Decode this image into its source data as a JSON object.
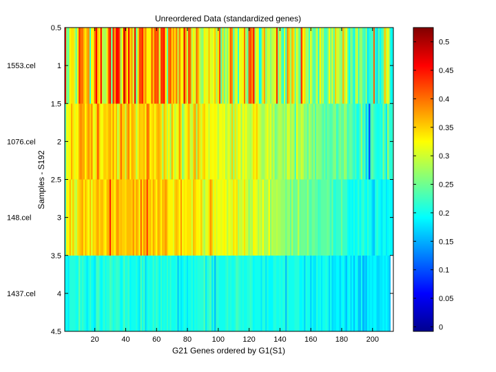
{
  "chart_data": {
    "type": "heatmap",
    "title": "Unreordered Data (standardized genes)",
    "xlabel": "G21 Genes ordered by G1(S1)",
    "ylabel": "Samples - S192",
    "xlim": [
      0.5,
      213.5
    ],
    "ylim": [
      0.5,
      4.5
    ],
    "y_reversed": true,
    "x_ticks": [
      20,
      40,
      60,
      80,
      100,
      120,
      140,
      160,
      180,
      200
    ],
    "y_ticks": [
      0.5,
      1,
      1.5,
      2,
      2.5,
      3,
      3.5,
      4,
      4.5
    ],
    "row_labels": [
      "1553.cel",
      "1076.cel",
      "148.cel",
      "1437.cel"
    ],
    "n_genes": 213,
    "colormap": "jet",
    "color_range": [
      -0.008,
      0.525
    ],
    "colorbar_ticks": [
      0,
      0.05,
      0.1,
      0.15,
      0.2,
      0.25,
      0.3,
      0.35,
      0.4,
      0.45,
      0.5
    ],
    "rows": [
      {
        "sample": "1553.cel",
        "values": [
          0.46,
          0.26,
          0.24,
          0.33,
          0.34,
          0.34,
          0.3,
          0.25,
          0.32,
          0.43,
          0.4,
          0.4,
          0.36,
          0.34,
          0.37,
          0.38,
          0.22,
          0.33,
          0.32,
          0.4,
          0.46,
          0.36,
          0.32,
          0.44,
          0.29,
          0.28,
          0.28,
          0.32,
          0.41,
          0.45,
          0.25,
          0.45,
          0.37,
          0.46,
          0.46,
          0.42,
          0.28,
          0.33,
          0.48,
          0.4,
          0.34,
          0.46,
          0.35,
          0.38,
          0.3,
          0.46,
          0.25,
          0.33,
          0.42,
          0.42,
          0.44,
          0.36,
          0.39,
          0.33,
          0.33,
          0.33,
          0.42,
          0.36,
          0.42,
          0.41,
          0.42,
          0.3,
          0.43,
          0.43,
          0.45,
          0.32,
          0.24,
          0.4,
          0.42,
          0.35,
          0.38,
          0.34,
          0.39,
          0.29,
          0.39,
          0.33,
          0.32,
          0.47,
          0.37,
          0.29,
          0.42,
          0.4,
          0.29,
          0.33,
          0.3,
          0.41,
          0.36,
          0.3,
          0.27,
          0.26,
          0.33,
          0.31,
          0.31,
          0.36,
          0.31,
          0.3,
          0.32,
          0.35,
          0.27,
          0.34,
          0.42,
          0.24,
          0.34,
          0.25,
          0.3,
          0.26,
          0.33,
          0.41,
          0.38,
          0.24,
          0.3,
          0.31,
          0.21,
          0.32,
          0.31,
          0.33,
          0.4,
          0.28,
          0.24,
          0.41,
          0.42,
          0.38,
          0.44,
          0.27,
          0.32,
          0.3,
          0.19,
          0.24,
          0.34,
          0.37,
          0.26,
          0.3,
          0.3,
          0.26,
          0.29,
          0.3,
          0.31,
          0.44,
          0.26,
          0.33,
          0.24,
          0.21,
          0.31,
          0.23,
          0.39,
          0.35,
          0.27,
          0.36,
          0.34,
          0.25,
          0.32,
          0.27,
          0.23,
          0.43,
          0.33,
          0.34,
          0.27,
          0.28,
          0.22,
          0.31,
          0.26,
          0.23,
          0.25,
          0.3,
          0.2,
          0.33,
          0.27,
          0.29,
          0.23,
          0.22,
          0.25,
          0.32,
          0.26,
          0.31,
          0.24,
          0.35,
          0.3,
          0.3,
          0.27,
          0.26,
          0.36,
          0.28,
          0.32,
          0.25,
          0.2,
          0.27,
          0.24,
          0.19,
          0.27,
          0.31,
          0.21,
          0.27,
          0.27,
          0.23,
          0.22,
          0.26,
          0.18,
          0.21,
          0.22,
          0.23,
          0.41,
          0.21,
          0.17,
          0.24,
          0.19,
          0.22,
          0.24,
          0.35,
          0.29,
          0.32,
          0.26,
          0.19,
          0.2
        ]
      },
      {
        "sample": "1076.cel",
        "values": [
          0.23,
          0.32,
          0.31,
          0.33,
          0.37,
          0.34,
          0.31,
          0.33,
          0.32,
          0.37,
          0.39,
          0.37,
          0.37,
          0.33,
          0.36,
          0.38,
          0.35,
          0.38,
          0.32,
          0.31,
          0.35,
          0.41,
          0.35,
          0.32,
          0.32,
          0.35,
          0.35,
          0.34,
          0.36,
          0.37,
          0.34,
          0.38,
          0.33,
          0.36,
          0.29,
          0.34,
          0.4,
          0.35,
          0.35,
          0.29,
          0.37,
          0.39,
          0.33,
          0.37,
          0.36,
          0.35,
          0.29,
          0.33,
          0.36,
          0.35,
          0.35,
          0.36,
          0.32,
          0.4,
          0.39,
          0.33,
          0.34,
          0.35,
          0.32,
          0.35,
          0.37,
          0.36,
          0.34,
          0.28,
          0.36,
          0.34,
          0.29,
          0.33,
          0.27,
          0.36,
          0.33,
          0.29,
          0.31,
          0.32,
          0.38,
          0.34,
          0.26,
          0.29,
          0.32,
          0.34,
          0.36,
          0.3,
          0.29,
          0.35,
          0.37,
          0.27,
          0.36,
          0.34,
          0.3,
          0.34,
          0.35,
          0.32,
          0.32,
          0.29,
          0.33,
          0.32,
          0.32,
          0.33,
          0.32,
          0.29,
          0.32,
          0.32,
          0.31,
          0.32,
          0.28,
          0.3,
          0.32,
          0.28,
          0.35,
          0.27,
          0.34,
          0.29,
          0.33,
          0.32,
          0.27,
          0.32,
          0.3,
          0.32,
          0.29,
          0.29,
          0.28,
          0.3,
          0.34,
          0.32,
          0.35,
          0.31,
          0.3,
          0.28,
          0.27,
          0.28,
          0.3,
          0.32,
          0.29,
          0.31,
          0.27,
          0.3,
          0.25,
          0.26,
          0.28,
          0.29,
          0.28,
          0.26,
          0.28,
          0.26,
          0.31,
          0.3,
          0.27,
          0.29,
          0.28,
          0.23,
          0.32,
          0.28,
          0.27,
          0.3,
          0.29,
          0.26,
          0.27,
          0.24,
          0.28,
          0.27,
          0.24,
          0.27,
          0.23,
          0.27,
          0.26,
          0.26,
          0.25,
          0.23,
          0.25,
          0.22,
          0.25,
          0.24,
          0.23,
          0.24,
          0.26,
          0.26,
          0.22,
          0.24,
          0.26,
          0.24,
          0.24,
          0.28,
          0.26,
          0.22,
          0.24,
          0.25,
          0.23,
          0.21,
          0.23,
          0.2,
          0.2,
          0.23,
          0.27,
          0.21,
          0.24,
          0.17,
          0.21,
          0.1,
          0.23,
          0.24,
          0.22,
          0.21,
          0.2,
          0.2,
          0.21,
          0.2,
          0.26,
          0.22,
          0.18,
          0.27,
          0.22,
          0.21,
          0.22
        ]
      },
      {
        "sample": "148.cel",
        "values": [
          0.22,
          0.33,
          0.32,
          0.36,
          0.31,
          0.35,
          0.3,
          0.29,
          0.34,
          0.35,
          0.36,
          0.37,
          0.33,
          0.36,
          0.34,
          0.32,
          0.36,
          0.31,
          0.35,
          0.34,
          0.36,
          0.37,
          0.34,
          0.36,
          0.36,
          0.34,
          0.33,
          0.36,
          0.37,
          0.44,
          0.35,
          0.35,
          0.33,
          0.37,
          0.38,
          0.35,
          0.36,
          0.35,
          0.35,
          0.34,
          0.36,
          0.36,
          0.36,
          0.35,
          0.38,
          0.34,
          0.37,
          0.36,
          0.32,
          0.4,
          0.34,
          0.38,
          0.36,
          0.42,
          0.35,
          0.36,
          0.33,
          0.37,
          0.35,
          0.33,
          0.37,
          0.36,
          0.33,
          0.36,
          0.36,
          0.38,
          0.35,
          0.33,
          0.33,
          0.33,
          0.31,
          0.35,
          0.36,
          0.35,
          0.33,
          0.38,
          0.32,
          0.34,
          0.33,
          0.34,
          0.34,
          0.34,
          0.3,
          0.36,
          0.35,
          0.33,
          0.33,
          0.32,
          0.35,
          0.3,
          0.28,
          0.31,
          0.31,
          0.34,
          0.38,
          0.35,
          0.3,
          0.33,
          0.3,
          0.32,
          0.32,
          0.31,
          0.32,
          0.33,
          0.32,
          0.29,
          0.32,
          0.31,
          0.3,
          0.34,
          0.32,
          0.34,
          0.28,
          0.3,
          0.29,
          0.31,
          0.34,
          0.3,
          0.3,
          0.26,
          0.29,
          0.28,
          0.33,
          0.32,
          0.31,
          0.28,
          0.3,
          0.28,
          0.32,
          0.28,
          0.28,
          0.28,
          0.32,
          0.26,
          0.29,
          0.28,
          0.28,
          0.29,
          0.28,
          0.28,
          0.27,
          0.27,
          0.27,
          0.25,
          0.27,
          0.27,
          0.24,
          0.28,
          0.24,
          0.25,
          0.25,
          0.29,
          0.24,
          0.25,
          0.25,
          0.25,
          0.24,
          0.27,
          0.24,
          0.23,
          0.25,
          0.25,
          0.24,
          0.24,
          0.22,
          0.23,
          0.24,
          0.24,
          0.24,
          0.24,
          0.25,
          0.24,
          0.22,
          0.25,
          0.21,
          0.21,
          0.22,
          0.22,
          0.22,
          0.25,
          0.22,
          0.22,
          0.22,
          0.2,
          0.19,
          0.2,
          0.19,
          0.21,
          0.19,
          0.2,
          0.22,
          0.19,
          0.21,
          0.22,
          0.2,
          0.19,
          0.22,
          0.2,
          0.2,
          0.17,
          0.16,
          0.2,
          0.22,
          0.2,
          0.19,
          0.18,
          0.2,
          0.2,
          0.18,
          0.19,
          0.2,
          0.19,
          0.18
        ]
      },
      {
        "sample": "1437.cel",
        "values": [
          0.19,
          0.2,
          0.18,
          0.21,
          0.21,
          0.21,
          0.21,
          0.2,
          0.2,
          0.24,
          0.2,
          0.22,
          0.21,
          0.2,
          0.18,
          0.2,
          0.22,
          0.2,
          0.19,
          0.18,
          0.22,
          0.23,
          0.21,
          0.19,
          0.2,
          0.22,
          0.2,
          0.21,
          0.21,
          0.23,
          0.22,
          0.2,
          0.21,
          0.22,
          0.22,
          0.21,
          0.19,
          0.2,
          0.23,
          0.2,
          0.21,
          0.22,
          0.19,
          0.2,
          0.2,
          0.2,
          0.21,
          0.19,
          0.18,
          0.23,
          0.2,
          0.22,
          0.17,
          0.2,
          0.21,
          0.2,
          0.2,
          0.22,
          0.2,
          0.22,
          0.21,
          0.19,
          0.22,
          0.2,
          0.21,
          0.2,
          0.22,
          0.2,
          0.22,
          0.2,
          0.2,
          0.2,
          0.21,
          0.16,
          0.2,
          0.18,
          0.19,
          0.21,
          0.2,
          0.18,
          0.2,
          0.2,
          0.21,
          0.19,
          0.21,
          0.2,
          0.21,
          0.21,
          0.21,
          0.21,
          0.23,
          0.18,
          0.21,
          0.22,
          0.23,
          0.18,
          0.21,
          0.16,
          0.22,
          0.21,
          0.2,
          0.2,
          0.2,
          0.2,
          0.21,
          0.22,
          0.2,
          0.21,
          0.2,
          0.2,
          0.21,
          0.23,
          0.22,
          0.21,
          0.2,
          0.21,
          0.2,
          0.2,
          0.21,
          0.21,
          0.22,
          0.21,
          0.19,
          0.2,
          0.2,
          0.2,
          0.2,
          0.18,
          0.21,
          0.21,
          0.18,
          0.21,
          0.19,
          0.19,
          0.19,
          0.21,
          0.21,
          0.2,
          0.2,
          0.21,
          0.2,
          0.21,
          0.21,
          0.16,
          0.22,
          0.2,
          0.2,
          0.2,
          0.2,
          0.21,
          0.21,
          0.21,
          0.19,
          0.19,
          0.2,
          0.17,
          0.21,
          0.2,
          0.2,
          0.17,
          0.2,
          0.18,
          0.18,
          0.21,
          0.19,
          0.2,
          0.18,
          0.2,
          0.2,
          0.21,
          0.2,
          0.17,
          0.2,
          0.17,
          0.18,
          0.18,
          0.19,
          0.19,
          0.17,
          0.19,
          0.2,
          0.18,
          0.16,
          0.19,
          0.2,
          0.17,
          0.19,
          0.16,
          0.19,
          0.2,
          0.16,
          0.16,
          0.2,
          0.15,
          0.17,
          0.16,
          0.19,
          0.18,
          0.19,
          0.18,
          0.19,
          0.19,
          0.17,
          0.17,
          0.18,
          0.18,
          0.19,
          0.18,
          0.19,
          0.18,
          0.16
        ]
      }
    ]
  }
}
